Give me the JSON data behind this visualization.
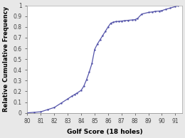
{
  "x": [
    80.0,
    80.5,
    81.0,
    81.5,
    82.0,
    82.5,
    83.0,
    83.3,
    83.5,
    83.7,
    84.0,
    84.2,
    84.4,
    84.6,
    84.8,
    85.0,
    85.2,
    85.4,
    85.6,
    85.8,
    86.0,
    86.2,
    86.4,
    86.6,
    86.8,
    87.0,
    87.2,
    87.5,
    87.8,
    88.0,
    88.2,
    88.5,
    89.0,
    89.3,
    89.5,
    89.8,
    90.0,
    90.3,
    90.6,
    91.0,
    91.2
  ],
  "y": [
    0.0,
    0.005,
    0.01,
    0.03,
    0.05,
    0.09,
    0.13,
    0.155,
    0.17,
    0.185,
    0.21,
    0.25,
    0.31,
    0.38,
    0.46,
    0.59,
    0.64,
    0.68,
    0.72,
    0.76,
    0.8,
    0.835,
    0.845,
    0.85,
    0.852,
    0.855,
    0.858,
    0.862,
    0.865,
    0.868,
    0.88,
    0.92,
    0.935,
    0.94,
    0.945,
    0.948,
    0.952,
    0.965,
    0.975,
    0.99,
    1.0
  ],
  "line_color": "#5555aa",
  "line_width": 0.9,
  "xlabel": "Golf Score (18 holes)",
  "ylabel": "Relative Cumulative Frequency",
  "xlim": [
    80,
    91.5
  ],
  "ylim": [
    0,
    1.0
  ],
  "xticks": [
    80,
    81,
    82,
    83,
    84,
    85,
    86,
    87,
    88,
    89,
    90,
    91
  ],
  "yticks": [
    0,
    0.1,
    0.2,
    0.3,
    0.4,
    0.5,
    0.6,
    0.7,
    0.8,
    0.9,
    1
  ],
  "ytick_labels": [
    "0",
    "0.1",
    "0.2",
    "0.3",
    "0.4",
    "0.5",
    "0.6",
    "0.7",
    "0.8",
    "0.9",
    "1"
  ],
  "bg_color": "#e8e8e8",
  "plot_bg": "#ffffff",
  "xlabel_fontsize": 6.5,
  "ylabel_fontsize": 6.0,
  "tick_fontsize": 5.5,
  "xlabel_fontweight": "bold",
  "ylabel_fontweight": "bold",
  "marker_size": 1.5
}
